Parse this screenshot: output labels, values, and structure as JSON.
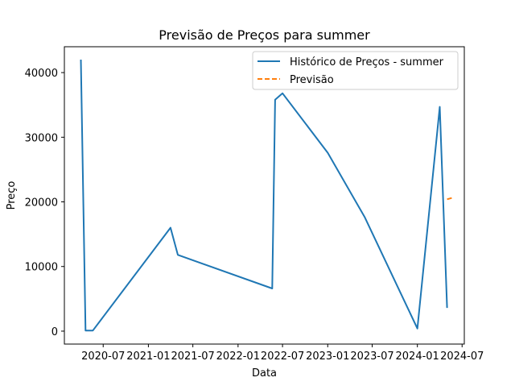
{
  "chart_data": {
    "type": "line",
    "title": "Previsão de Preços para summer",
    "xlabel": "Data",
    "ylabel": "Preço",
    "x_ticks": [
      "2020-07",
      "2021-01",
      "2021-07",
      "2022-01",
      "2022-07",
      "2023-01",
      "2023-07",
      "2024-01",
      "2024-07"
    ],
    "y_ticks": [
      0,
      10000,
      20000,
      30000,
      40000
    ],
    "xlim": [
      "2020-01-25",
      "2024-07-10"
    ],
    "ylim": [
      -2000,
      44000
    ],
    "grid": false,
    "legend_position": "top-right",
    "series": [
      {
        "name": "Histórico de Preços - summer",
        "color": "#1f77b4",
        "style": "solid",
        "points": [
          {
            "x": "2020-04-01",
            "y": 42000
          },
          {
            "x": "2020-04-20",
            "y": 100
          },
          {
            "x": "2020-05-20",
            "y": 100
          },
          {
            "x": "2021-04-01",
            "y": 16000
          },
          {
            "x": "2021-05-01",
            "y": 11800
          },
          {
            "x": "2022-05-20",
            "y": 6600
          },
          {
            "x": "2022-06-01",
            "y": 35800
          },
          {
            "x": "2022-07-01",
            "y": 36800
          },
          {
            "x": "2023-01-01",
            "y": 27600
          },
          {
            "x": "2023-06-01",
            "y": 17600
          },
          {
            "x": "2024-01-01",
            "y": 400
          },
          {
            "x": "2024-04-01",
            "y": 34700
          },
          {
            "x": "2024-05-01",
            "y": 3600
          }
        ]
      },
      {
        "name": "Previsão",
        "color": "#ff7f0e",
        "style": "dashed",
        "points": [
          {
            "x": "2024-05-01",
            "y": 20400
          },
          {
            "x": "2024-05-20",
            "y": 20600
          }
        ]
      }
    ]
  }
}
